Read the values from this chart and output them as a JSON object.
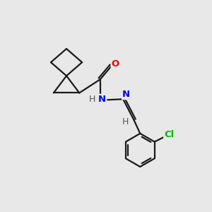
{
  "background_color": "#e8e8e8",
  "bond_color": "#1a1a1a",
  "N_color": "#0000ee",
  "O_color": "#ee0000",
  "Cl_color": "#00bb00",
  "H_color": "#555555",
  "bond_width": 1.6,
  "figsize": [
    3.0,
    3.0
  ],
  "dpi": 100,
  "xlim": [
    0,
    10
  ],
  "ylim": [
    0,
    10
  ]
}
